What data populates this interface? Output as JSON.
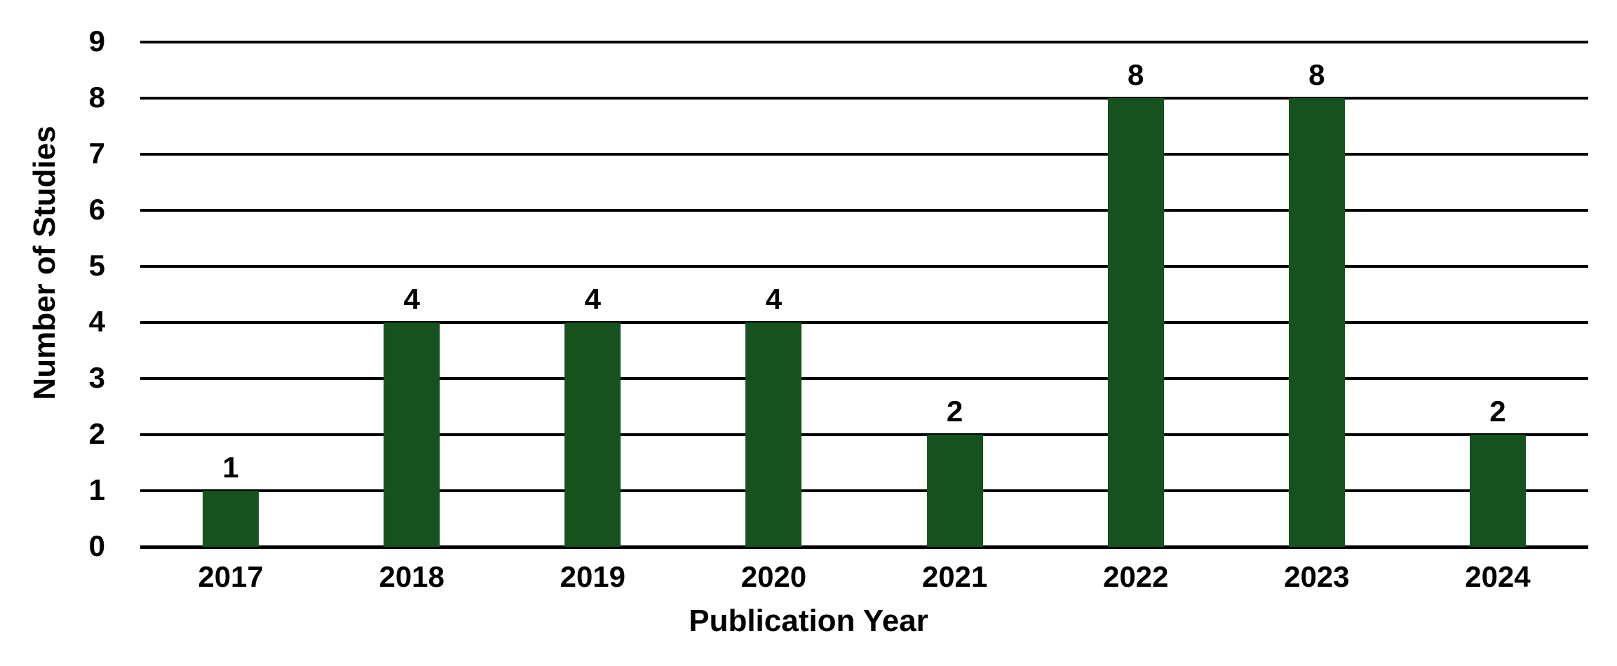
{
  "chart_data": {
    "type": "bar",
    "categories": [
      "2017",
      "2018",
      "2019",
      "2020",
      "2021",
      "2022",
      "2023",
      "2024"
    ],
    "values": [
      1,
      4,
      4,
      4,
      2,
      8,
      8,
      2
    ],
    "data_labels": [
      "1",
      "4",
      "4",
      "4",
      "2",
      "8",
      "8",
      "2"
    ],
    "xlabel": "Publication Year",
    "ylabel": "Number of Studies",
    "ylim": [
      0,
      9
    ],
    "yticks": [
      0,
      1,
      2,
      3,
      4,
      5,
      6,
      7,
      8,
      9
    ],
    "grid": "horizontal-only",
    "legend": "none",
    "bar_color": "#15521e",
    "grid_color": "#000000",
    "text_color": "#000000",
    "background_color": "#ffffff"
  }
}
